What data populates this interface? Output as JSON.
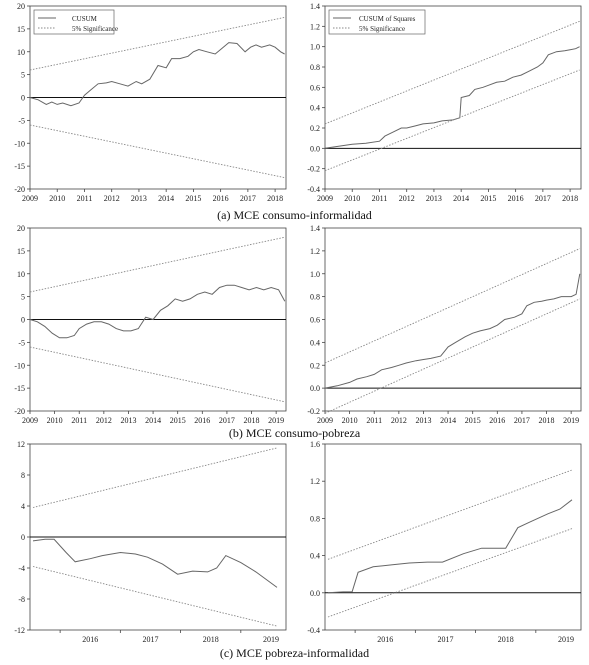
{
  "captions": {
    "a": "(a) MCE consumo-informalidad",
    "b": "(b) MCE consumo-pobreza",
    "c": "(c) MCE pobreza-informalidad"
  },
  "chart_data": [
    {
      "type": "line",
      "xlim": [
        2009,
        2018.4
      ],
      "ylim": [
        -20,
        20
      ],
      "yticks": [
        -20,
        -15,
        -10,
        -5,
        0,
        5,
        10,
        15,
        20
      ],
      "xticks": [
        2009,
        2010,
        2011,
        2012,
        2013,
        2014,
        2015,
        2016,
        2017,
        2018
      ],
      "legend": {
        "placement": "top-left",
        "entries": [
          "CUSUM",
          "5% Significance"
        ]
      },
      "series": [
        {
          "name": "CUSUM",
          "style": "solid",
          "x": [
            2009.0,
            2009.3,
            2009.6,
            2009.8,
            2010.0,
            2010.2,
            2010.5,
            2010.8,
            2011.0,
            2011.2,
            2011.5,
            2011.8,
            2012.0,
            2012.3,
            2012.6,
            2012.9,
            2013.1,
            2013.4,
            2013.7,
            2014.0,
            2014.2,
            2014.5,
            2014.8,
            2015.0,
            2015.2,
            2015.5,
            2015.8,
            2016.0,
            2016.3,
            2016.6,
            2016.9,
            2017.1,
            2017.3,
            2017.5,
            2017.8,
            2018.0,
            2018.2,
            2018.35
          ],
          "y": [
            0,
            -0.5,
            -1.5,
            -1.0,
            -1.5,
            -1.2,
            -1.8,
            -1.2,
            0.5,
            1.5,
            3.0,
            3.2,
            3.5,
            3.0,
            2.5,
            3.5,
            3.0,
            4.0,
            7.0,
            6.5,
            8.5,
            8.5,
            9.0,
            10.0,
            10.5,
            10.0,
            9.5,
            10.5,
            12.0,
            11.8,
            10.0,
            11.0,
            11.5,
            11.0,
            11.5,
            11.0,
            10.0,
            9.5
          ]
        },
        {
          "name": "5% Significance",
          "style": "dotted",
          "x": [
            2009,
            2018.35
          ],
          "y": [
            6,
            17.5
          ]
        },
        {
          "style": "dotted",
          "x": [
            2009,
            2018.35
          ],
          "y": [
            -6,
            -17.5
          ]
        }
      ]
    },
    {
      "type": "line",
      "xlim": [
        2009,
        2018.4
      ],
      "ylim": [
        -0.4,
        1.4
      ],
      "yticks": [
        -0.4,
        -0.2,
        0.0,
        0.2,
        0.4,
        0.6,
        0.8,
        1.0,
        1.2,
        1.4
      ],
      "xticks": [
        2009,
        2010,
        2011,
        2012,
        2013,
        2014,
        2015,
        2016,
        2017,
        2018
      ],
      "legend": {
        "placement": "top-left",
        "entries": [
          "CUSUM of Squares",
          "5% Significance"
        ]
      },
      "series": [
        {
          "name": "CUSUM of Squares",
          "style": "solid",
          "x": [
            2009.0,
            2009.5,
            2010.0,
            2010.5,
            2011.0,
            2011.2,
            2011.5,
            2011.8,
            2012.0,
            2012.3,
            2012.6,
            2013.0,
            2013.3,
            2013.7,
            2013.95,
            2014.0,
            2014.3,
            2014.5,
            2014.8,
            2015.0,
            2015.3,
            2015.6,
            2015.9,
            2016.2,
            2016.5,
            2016.8,
            2017.0,
            2017.2,
            2017.5,
            2017.8,
            2018.0,
            2018.2,
            2018.35
          ],
          "y": [
            0,
            0.02,
            0.04,
            0.05,
            0.07,
            0.12,
            0.16,
            0.2,
            0.2,
            0.22,
            0.24,
            0.25,
            0.27,
            0.28,
            0.3,
            0.5,
            0.52,
            0.58,
            0.6,
            0.62,
            0.65,
            0.66,
            0.7,
            0.72,
            0.76,
            0.8,
            0.84,
            0.92,
            0.95,
            0.96,
            0.97,
            0.98,
            1.0
          ]
        },
        {
          "name": "5% Significance",
          "style": "dotted",
          "x": [
            2009,
            2018.35
          ],
          "y": [
            0.24,
            1.25
          ]
        },
        {
          "style": "dotted",
          "x": [
            2009,
            2018.35
          ],
          "y": [
            -0.22,
            0.77
          ]
        }
      ]
    },
    {
      "type": "line",
      "xlim": [
        2009,
        2019.4
      ],
      "ylim": [
        -20,
        20
      ],
      "yticks": [
        -20,
        -15,
        -10,
        -5,
        0,
        5,
        10,
        15,
        20
      ],
      "xticks": [
        2009,
        2010,
        2011,
        2012,
        2013,
        2014,
        2015,
        2016,
        2017,
        2018,
        2019
      ],
      "series": [
        {
          "style": "solid",
          "x": [
            2009.0,
            2009.3,
            2009.6,
            2009.9,
            2010.2,
            2010.5,
            2010.8,
            2011.0,
            2011.3,
            2011.6,
            2011.9,
            2012.2,
            2012.5,
            2012.8,
            2013.1,
            2013.4,
            2013.7,
            2014.0,
            2014.3,
            2014.6,
            2014.9,
            2015.2,
            2015.5,
            2015.8,
            2016.1,
            2016.4,
            2016.7,
            2017.0,
            2017.3,
            2017.6,
            2017.9,
            2018.2,
            2018.5,
            2018.8,
            2019.1,
            2019.35
          ],
          "y": [
            0,
            -0.5,
            -1.5,
            -3.0,
            -4.0,
            -4.0,
            -3.5,
            -2.0,
            -1.0,
            -0.5,
            -0.5,
            -1.0,
            -2.0,
            -2.5,
            -2.5,
            -2.0,
            0.5,
            0.0,
            2.0,
            3.0,
            4.5,
            4.0,
            4.5,
            5.5,
            6.0,
            5.5,
            7.0,
            7.5,
            7.5,
            7.0,
            6.5,
            7.0,
            6.5,
            7.0,
            6.5,
            4.0
          ]
        },
        {
          "style": "dotted",
          "x": [
            2009,
            2019.35
          ],
          "y": [
            6,
            18
          ]
        },
        {
          "style": "dotted",
          "x": [
            2009,
            2019.35
          ],
          "y": [
            -6,
            -18
          ]
        }
      ]
    },
    {
      "type": "line",
      "xlim": [
        2009,
        2019.4
      ],
      "ylim": [
        -0.2,
        1.4
      ],
      "yticks": [
        -0.2,
        0.0,
        0.2,
        0.4,
        0.6,
        0.8,
        1.0,
        1.2,
        1.4
      ],
      "xticks": [
        2009,
        2010,
        2011,
        2012,
        2013,
        2014,
        2015,
        2016,
        2017,
        2018,
        2019
      ],
      "series": [
        {
          "style": "solid",
          "x": [
            2009.0,
            2009.5,
            2010.0,
            2010.3,
            2010.7,
            2011.0,
            2011.3,
            2011.7,
            2012.0,
            2012.3,
            2012.7,
            2013.0,
            2013.3,
            2013.7,
            2014.0,
            2014.3,
            2014.7,
            2015.0,
            2015.3,
            2015.7,
            2016.0,
            2016.3,
            2016.7,
            2017.0,
            2017.2,
            2017.5,
            2017.8,
            2018.0,
            2018.3,
            2018.6,
            2019.0,
            2019.2,
            2019.35
          ],
          "y": [
            0,
            0.02,
            0.05,
            0.08,
            0.1,
            0.12,
            0.16,
            0.18,
            0.2,
            0.22,
            0.24,
            0.25,
            0.26,
            0.28,
            0.36,
            0.4,
            0.45,
            0.48,
            0.5,
            0.52,
            0.55,
            0.6,
            0.62,
            0.65,
            0.72,
            0.75,
            0.76,
            0.77,
            0.78,
            0.8,
            0.8,
            0.82,
            1.0
          ]
        },
        {
          "style": "dotted",
          "x": [
            2009,
            2019.35
          ],
          "y": [
            0.22,
            1.22
          ]
        },
        {
          "style": "dotted",
          "x": [
            2009,
            2019.35
          ],
          "y": [
            -0.22,
            0.78
          ]
        }
      ]
    },
    {
      "type": "line",
      "xlim": [
        2015.5,
        2019.75
      ],
      "ylim": [
        -12,
        12
      ],
      "yticks": [
        -12,
        -8,
        -4,
        0,
        4,
        8,
        12
      ],
      "xticks": [
        2016,
        2017,
        2018,
        2019
      ],
      "series": [
        {
          "style": "solid",
          "x": [
            2015.55,
            2015.75,
            2015.9,
            2016.1,
            2016.25,
            2016.5,
            2016.7,
            2017.0,
            2017.25,
            2017.45,
            2017.7,
            2017.95,
            2018.2,
            2018.45,
            2018.6,
            2018.75,
            2019.0,
            2019.25,
            2019.6
          ],
          "y": [
            -0.5,
            -0.3,
            -0.3,
            -2.0,
            -3.2,
            -2.8,
            -2.4,
            -2.0,
            -2.2,
            -2.6,
            -3.5,
            -4.8,
            -4.4,
            -4.5,
            -4.0,
            -2.4,
            -3.3,
            -4.5,
            -6.5
          ]
        },
        {
          "style": "dotted",
          "x": [
            2015.55,
            2019.6
          ],
          "y": [
            3.8,
            11.5
          ]
        },
        {
          "style": "dotted",
          "x": [
            2015.55,
            2019.6
          ],
          "y": [
            -3.8,
            -11.5
          ]
        }
      ]
    },
    {
      "type": "line",
      "xlim": [
        2015.5,
        2019.75
      ],
      "ylim": [
        -0.4,
        1.6
      ],
      "yticks": [
        -0.4,
        0.0,
        0.4,
        0.8,
        1.2,
        1.6
      ],
      "xticks": [
        2016,
        2017,
        2018,
        2019
      ],
      "series": [
        {
          "style": "solid",
          "x": [
            2015.55,
            2015.8,
            2015.95,
            2016.05,
            2016.3,
            2016.6,
            2016.9,
            2017.2,
            2017.45,
            2017.8,
            2018.1,
            2018.5,
            2018.7,
            2018.9,
            2019.2,
            2019.4,
            2019.6
          ],
          "y": [
            0,
            0.01,
            0.01,
            0.22,
            0.28,
            0.3,
            0.32,
            0.33,
            0.33,
            0.42,
            0.48,
            0.48,
            0.7,
            0.76,
            0.85,
            0.9,
            1.0
          ]
        },
        {
          "style": "dotted",
          "x": [
            2015.55,
            2019.6
          ],
          "y": [
            0.36,
            1.32
          ]
        },
        {
          "style": "dotted",
          "x": [
            2015.55,
            2019.6
          ],
          "y": [
            -0.26,
            0.69
          ]
        }
      ]
    }
  ]
}
